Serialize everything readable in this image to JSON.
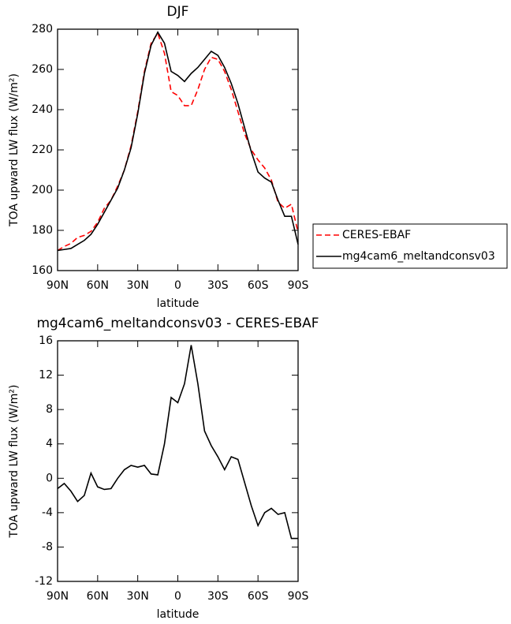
{
  "chart_data": [
    {
      "type": "line",
      "title": "DJF",
      "xlabel": "latitude",
      "ylabel": "TOA upward LW flux (W/m²)",
      "x": [
        90,
        85,
        80,
        75,
        70,
        65,
        60,
        55,
        50,
        45,
        40,
        35,
        30,
        25,
        20,
        15,
        10,
        5,
        0,
        -5,
        -10,
        -15,
        -20,
        -25,
        -30,
        -35,
        -40,
        -45,
        -50,
        -55,
        -60,
        -65,
        -70,
        -75,
        -80,
        -85,
        -90
      ],
      "series": [
        {
          "name": "CERES-EBAF",
          "color": "#ff0000",
          "dash": true,
          "values": [
            170,
            172,
            173.5,
            176.5,
            177.5,
            179.5,
            184,
            191,
            195,
            202,
            210,
            222,
            239,
            259,
            273,
            278,
            268,
            249,
            247,
            242,
            242,
            250,
            260,
            266,
            265,
            259,
            250,
            239,
            228,
            220,
            215,
            211,
            205,
            194,
            191,
            193,
            179
          ]
        },
        {
          "name": "mg4cam6_meltandconsv03",
          "color": "#000000",
          "dash": false,
          "values": [
            170,
            170.5,
            171,
            173,
            175,
            178,
            183,
            189,
            195,
            201,
            210,
            221,
            238,
            258,
            272,
            278.5,
            273,
            259,
            257,
            254,
            258,
            261,
            265,
            269,
            267,
            261,
            253,
            243,
            231,
            219,
            209,
            206,
            204,
            195,
            187,
            187,
            173
          ]
        }
      ],
      "xlim": [
        90,
        -90
      ],
      "xticks": [
        {
          "value": 90,
          "label": "90N"
        },
        {
          "value": 60,
          "label": "60N"
        },
        {
          "value": 30,
          "label": "30N"
        },
        0,
        {
          "value": -30,
          "label": "30S"
        },
        {
          "value": -60,
          "label": "60S"
        },
        {
          "value": -90,
          "label": "90S"
        }
      ],
      "ylim": [
        160,
        280
      ],
      "yticks": [
        160,
        180,
        200,
        220,
        240,
        260,
        280
      ],
      "legend": "right"
    },
    {
      "type": "line",
      "title": "mg4cam6_meltandconsv03 - CERES-EBAF",
      "xlabel": "latitude",
      "ylabel": "TOA upward LW flux (W/m²)",
      "x": [
        90,
        85,
        80,
        75,
        70,
        65,
        60,
        55,
        50,
        45,
        40,
        35,
        30,
        25,
        20,
        15,
        10,
        5,
        0,
        -5,
        -10,
        -15,
        -20,
        -25,
        -30,
        -35,
        -40,
        -45,
        -50,
        -55,
        -60,
        -65,
        -70,
        -75,
        -80,
        -85,
        -90
      ],
      "values": [
        -1.2,
        -0.6,
        -1.5,
        -2.7,
        -2.0,
        0.6,
        -1.0,
        -1.3,
        -1.2,
        0,
        1.0,
        1.5,
        1.3,
        1.5,
        0.5,
        0.4,
        4,
        9.4,
        8.8,
        11,
        15.5,
        11,
        5.5,
        3.8,
        2.5,
        1.0,
        2.5,
        2.2,
        -0.5,
        -3.2,
        -5.5,
        -4,
        -3.5,
        -4.2,
        -4,
        -7,
        -7
      ],
      "color": "#000000",
      "xlim": [
        90,
        -90
      ],
      "xticks": [
        {
          "value": 90,
          "label": "90N"
        },
        {
          "value": 60,
          "label": "60N"
        },
        {
          "value": 30,
          "label": "30N"
        },
        0,
        {
          "value": -30,
          "label": "30S"
        },
        {
          "value": -60,
          "label": "60S"
        },
        {
          "value": -90,
          "label": "90S"
        }
      ],
      "ylim": [
        -12,
        16
      ],
      "yticks": [
        -12,
        -8,
        -4,
        0,
        4,
        8,
        12,
        16
      ]
    }
  ]
}
